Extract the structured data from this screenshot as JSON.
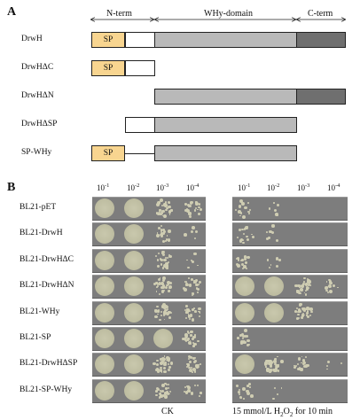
{
  "panelA": {
    "letter": "A",
    "domains": {
      "nterm": "N-term",
      "why": "WHy-domain",
      "cterm": "C-term"
    },
    "sp_label": "SP",
    "constructs": [
      {
        "name": "DrwH",
        "sp": true,
        "white": true,
        "why": true,
        "cterm": true,
        "line": false
      },
      {
        "name": "DrwHΔC",
        "sp": true,
        "white": true,
        "why": false,
        "cterm": false,
        "line": false
      },
      {
        "name": "DrwHΔN",
        "sp": false,
        "white": false,
        "why": true,
        "cterm": true,
        "line": false
      },
      {
        "name": "DrwHΔSP",
        "sp": false,
        "white": true,
        "why": true,
        "cterm": false,
        "line": false
      },
      {
        "name": "SP-WHy",
        "sp": true,
        "white": false,
        "why": true,
        "cterm": false,
        "line": true
      }
    ],
    "colors": {
      "sp": "#f8d590",
      "why": "#b9b9b9",
      "cterm": "#6f6f6f",
      "white": "#ffffff"
    }
  },
  "panelB": {
    "letter": "B",
    "dilutions": [
      "10",
      "10",
      "10",
      "10"
    ],
    "dilution_exponents": [
      "-1",
      "-2",
      "-3",
      "-4"
    ],
    "strains": [
      "BL21-pET",
      "BL21-DrwH",
      "BL21-DrwHΔC",
      "BL21-DrwHΔN",
      "BL21-WHy",
      "BL21-SP",
      "BL21-DrwHΔSP",
      "BL21-SP-WHy"
    ],
    "ck_label": "CK",
    "h2o2_label_pre": "15 mmol/L H",
    "h2o2_sub1": "2",
    "h2o2_mid": "O",
    "h2o2_sub2": "2",
    "h2o2_post": " for 10 min",
    "ck_growth": [
      [
        1.0,
        1.0,
        0.9,
        0.6
      ],
      [
        1.0,
        1.0,
        0.5,
        0.15
      ],
      [
        1.0,
        1.0,
        0.6,
        0.15
      ],
      [
        1.0,
        1.0,
        0.8,
        0.6
      ],
      [
        1.0,
        1.0,
        0.8,
        0.6
      ],
      [
        1.0,
        1.0,
        1.0,
        0.7
      ],
      [
        1.0,
        1.0,
        0.9,
        0.6
      ],
      [
        1.0,
        1.0,
        0.7,
        0.4
      ]
    ],
    "h2o2_growth": [
      [
        0.35,
        0.15,
        0.0,
        0.0
      ],
      [
        0.4,
        0.2,
        0.0,
        0.0
      ],
      [
        0.4,
        0.15,
        0.0,
        0.0
      ],
      [
        1.0,
        1.0,
        0.7,
        0.3
      ],
      [
        1.0,
        1.0,
        0.9,
        0.0
      ],
      [
        0.4,
        0.0,
        0.0,
        0.0
      ],
      [
        1.0,
        0.9,
        0.5,
        0.1
      ],
      [
        0.4,
        0.1,
        0.0,
        0.0
      ]
    ]
  }
}
